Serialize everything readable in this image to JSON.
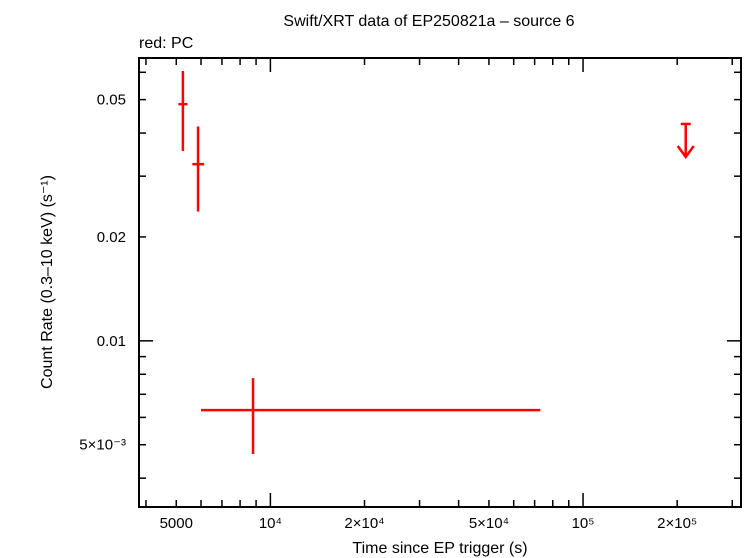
{
  "chart_data": {
    "type": "scatter",
    "title": "Swift/XRT data of EP250821a – source 6",
    "subtitle": "red: PC",
    "xlabel": "Time since EP trigger (s)",
    "ylabel": "Count Rate (0.3–10 keV) (s⁻¹)",
    "x_scale": "log",
    "y_scale": "log",
    "xlim": [
      3800,
      320000
    ],
    "ylim": [
      0.0033,
      0.066
    ],
    "grid": false,
    "series_color": "#ff0000",
    "x_tick_labels": [
      {
        "value": 5000,
        "label": "5000"
      },
      {
        "value": 10000,
        "label": "10⁴"
      },
      {
        "value": 20000,
        "label": "2×10⁴"
      },
      {
        "value": 50000,
        "label": "5×10⁴"
      },
      {
        "value": 100000,
        "label": "10⁵"
      },
      {
        "value": 200000,
        "label": "2×10⁵"
      }
    ],
    "y_tick_labels": [
      {
        "value": 0.05,
        "label": "0.05"
      },
      {
        "value": 0.02,
        "label": "0.02"
      },
      {
        "value": 0.01,
        "label": "0.01"
      },
      {
        "value": 0.005,
        "label": "5×10⁻³"
      }
    ],
    "points": [
      {
        "x": 5250,
        "x_err_lo": 5080,
        "x_err_hi": 5430,
        "y": 0.0485,
        "y_err_lo": 0.0355,
        "y_err_hi": 0.0605
      },
      {
        "x": 5870,
        "x_err_lo": 5630,
        "x_err_hi": 6140,
        "y": 0.0325,
        "y_err_lo": 0.0237,
        "y_err_hi": 0.0418
      },
      {
        "x": 8800,
        "x_err_lo": 6000,
        "x_err_hi": 73000,
        "y": 0.0063,
        "y_err_lo": 0.0047,
        "y_err_hi": 0.0078
      }
    ],
    "upper_limits": [
      {
        "x": 213000,
        "y": 0.0425
      }
    ]
  }
}
